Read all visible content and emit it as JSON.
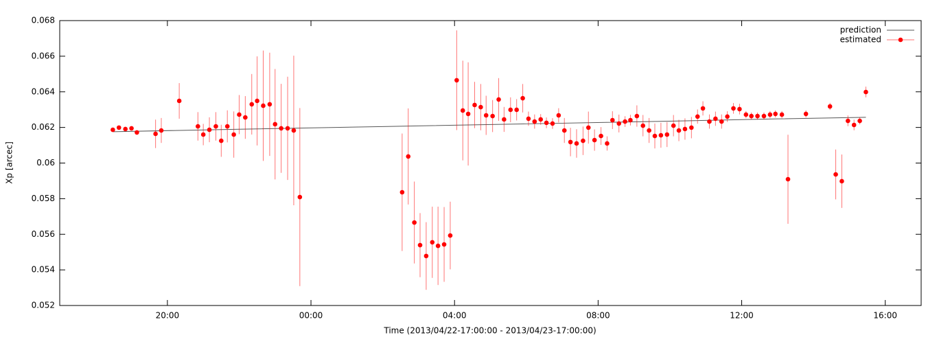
{
  "chart_data": {
    "type": "errorbar",
    "xlabel": "Time (2013/04/22-17:00:00 - 2013/04/23-17:00:00)",
    "ylabel": "Xp [arcec]",
    "xlim": [
      17,
      41
    ],
    "xticks": [
      {
        "value": 20,
        "label": "20:00"
      },
      {
        "value": 24,
        "label": "00:00"
      },
      {
        "value": 28,
        "label": "04:00"
      },
      {
        "value": 32,
        "label": "08:00"
      },
      {
        "value": 36,
        "label": "12:00"
      },
      {
        "value": 40,
        "label": "16:00"
      }
    ],
    "ylim": [
      0.052,
      0.068
    ],
    "yticks": [
      0.052,
      0.054,
      0.056,
      0.058,
      0.06,
      0.062,
      0.064,
      0.066,
      0.068
    ],
    "legend": "upper right",
    "series": [
      {
        "name": "prediction",
        "color": "#555555",
        "kind": "line",
        "x": [
          18.48,
          22,
          26,
          30,
          34,
          37,
          39.46
        ],
        "values": [
          0.06176,
          0.0619,
          0.06205,
          0.0622,
          0.06235,
          0.06248,
          0.06257
        ]
      },
      {
        "name": "estimated",
        "color": "#ff0000",
        "kind": "errorbar",
        "x": [
          18.48,
          18.65,
          18.83,
          19.0,
          19.15,
          19.67,
          19.83,
          20.33,
          20.85,
          21.0,
          21.17,
          21.35,
          21.5,
          21.67,
          21.85,
          22.0,
          22.17,
          22.35,
          22.5,
          22.67,
          22.85,
          23.0,
          23.17,
          23.35,
          23.52,
          23.69,
          26.54,
          26.71,
          26.88,
          27.04,
          27.21,
          27.38,
          27.54,
          27.71,
          27.88,
          28.06,
          28.23,
          28.38,
          28.56,
          28.73,
          28.88,
          29.06,
          29.23,
          29.38,
          29.56,
          29.73,
          29.9,
          30.06,
          30.23,
          30.4,
          30.56,
          30.73,
          30.9,
          31.06,
          31.23,
          31.4,
          31.58,
          31.73,
          31.9,
          32.08,
          32.25,
          32.4,
          32.58,
          32.75,
          32.9,
          33.08,
          33.25,
          33.42,
          33.58,
          33.75,
          33.92,
          34.1,
          34.25,
          34.42,
          34.6,
          34.77,
          34.92,
          35.1,
          35.27,
          35.44,
          35.6,
          35.77,
          35.94,
          36.12,
          36.27,
          36.44,
          36.62,
          36.79,
          36.94,
          37.12,
          37.29,
          37.79,
          38.46,
          38.62,
          38.79,
          38.96,
          39.13,
          39.29,
          39.46
        ],
        "values": [
          0.06187,
          0.06199,
          0.06191,
          0.06195,
          0.06172,
          0.06164,
          0.06183,
          0.06349,
          0.06206,
          0.0616,
          0.06187,
          0.06206,
          0.06125,
          0.06206,
          0.0616,
          0.06272,
          0.06256,
          0.0633,
          0.06349,
          0.06322,
          0.0633,
          0.06218,
          0.06195,
          0.06195,
          0.06183,
          0.05809,
          0.05836,
          0.06037,
          0.05666,
          0.05539,
          0.05478,
          0.05555,
          0.05535,
          0.05543,
          0.05593,
          0.06465,
          0.06295,
          0.06276,
          0.06326,
          0.06314,
          0.06268,
          0.06264,
          0.06357,
          0.06245,
          0.06299,
          0.06299,
          0.06364,
          0.06249,
          0.06233,
          0.06245,
          0.06226,
          0.06222,
          0.06268,
          0.06183,
          0.06118,
          0.0611,
          0.06125,
          0.06199,
          0.06129,
          0.06152,
          0.0611,
          0.06241,
          0.06222,
          0.06233,
          0.06241,
          0.06264,
          0.0621,
          0.06183,
          0.06152,
          0.06156,
          0.0616,
          0.0621,
          0.06183,
          0.06191,
          0.06199,
          0.06261,
          0.06307,
          0.06233,
          0.06249,
          0.06233,
          0.06261,
          0.06307,
          0.06303,
          0.06272,
          0.06264,
          0.06264,
          0.06264,
          0.06272,
          0.06276,
          0.06272,
          0.05909,
          0.06276,
          0.06318,
          0.05936,
          0.05898,
          0.06237,
          0.06214,
          0.06237,
          0.06399
        ],
        "errors": [
          0.0001,
          0.0001,
          0.0001,
          0.0001,
          0.0001,
          0.0008,
          0.0007,
          0.001,
          0.0008,
          0.0006,
          0.0007,
          0.0008,
          0.0009,
          0.0009,
          0.0013,
          0.0011,
          0.0012,
          0.0017,
          0.0025,
          0.0031,
          0.0029,
          0.0031,
          0.0025,
          0.0029,
          0.0042,
          0.005,
          0.0033,
          0.0027,
          0.0023,
          0.0018,
          0.0019,
          0.002,
          0.0022,
          0.0021,
          0.0019,
          0.0028,
          0.0028,
          0.0029,
          0.0013,
          0.0013,
          0.0011,
          0.0009,
          0.0012,
          0.0007,
          0.0007,
          0.0006,
          0.0008,
          0.0004,
          0.0004,
          0.0003,
          0.0003,
          0.0003,
          0.0004,
          0.0007,
          0.0008,
          0.0008,
          0.0008,
          0.0009,
          0.0006,
          0.0005,
          0.0004,
          0.0005,
          0.0005,
          0.0003,
          0.0003,
          0.0006,
          0.0006,
          0.0007,
          0.0007,
          0.0007,
          0.0007,
          0.0006,
          0.0006,
          0.0006,
          0.0006,
          0.0004,
          0.0004,
          0.0004,
          0.0004,
          0.0004,
          0.0003,
          0.0003,
          0.0003,
          0.0002,
          0.0002,
          0.0002,
          0.0002,
          0.0002,
          0.0002,
          0.0002,
          0.0025,
          0.0002,
          0.0002,
          0.0014,
          0.0015,
          0.0003,
          0.0003,
          0.0002,
          0.0003
        ]
      }
    ]
  }
}
